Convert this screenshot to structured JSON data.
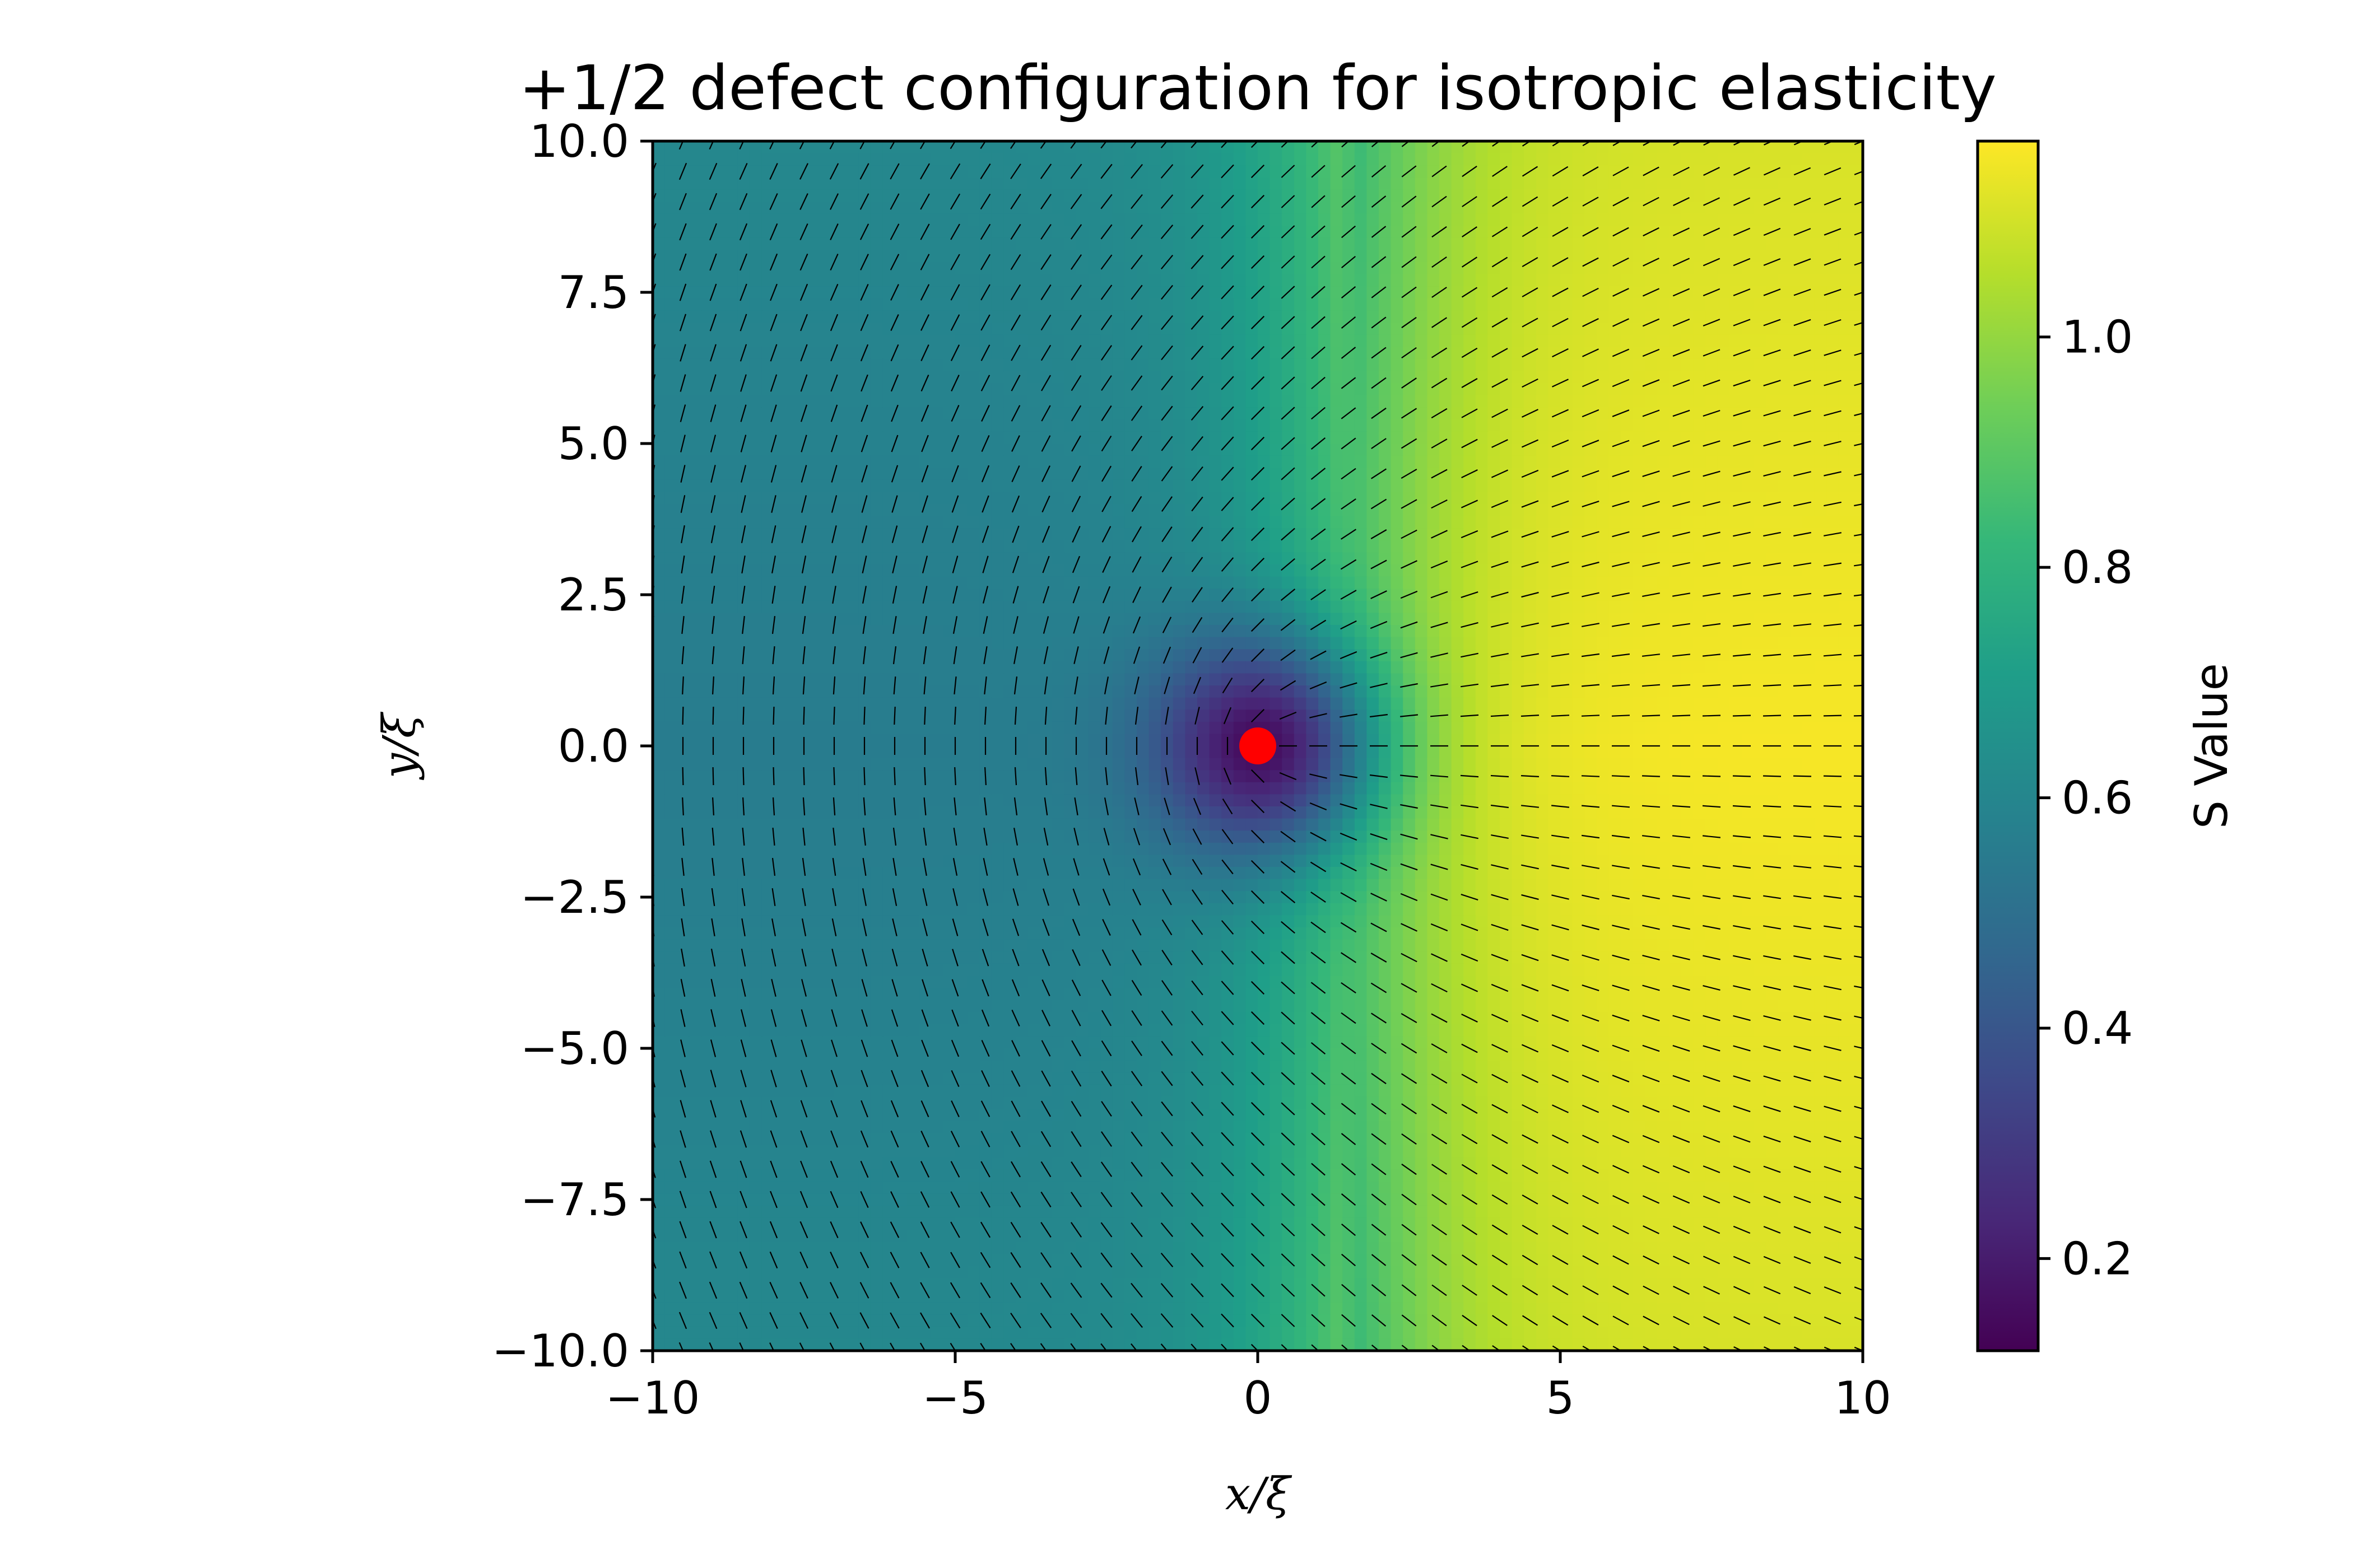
{
  "chart_data": {
    "type": "heatmap",
    "title": "+1/2 defect configuration for isotropic elasticity",
    "xlabel": "x/ξ",
    "ylabel": "y/ξ",
    "xlim": [
      -10,
      10
    ],
    "ylim": [
      -10,
      10
    ],
    "x_ticks": [
      -10,
      -5,
      0,
      5,
      10
    ],
    "x_tick_labels": [
      "−10",
      "−5",
      "0",
      "5",
      "10"
    ],
    "y_ticks": [
      10,
      7.5,
      5,
      2.5,
      0,
      -2.5,
      -5,
      -7.5,
      -10
    ],
    "y_tick_labels": [
      "10.0",
      "7.5",
      "5.0",
      "2.5",
      "0.0",
      "−2.5",
      "−5.0",
      "−7.5",
      "−10.0"
    ],
    "colorbar": {
      "label": "S Value",
      "colormap": "viridis",
      "range": [
        0.12,
        1.17
      ],
      "ticks": [
        1.0,
        0.8,
        0.6,
        0.4,
        0.2
      ],
      "tick_labels": [
        "1.0",
        "0.8",
        "0.6",
        "0.4",
        "0.2"
      ]
    },
    "director_field": {
      "charge": 0.5,
      "grid_spacing": 0.5,
      "orientation": "theta/2"
    },
    "defect_marker": {
      "x": 0,
      "y": 0,
      "color": "#ff0000"
    },
    "colors": {
      "viridis_stops": [
        "#440154",
        "#482878",
        "#3e4989",
        "#31688e",
        "#26828e",
        "#1f9e89",
        "#35b779",
        "#6ece58",
        "#b5de2b",
        "#fde725"
      ]
    }
  }
}
